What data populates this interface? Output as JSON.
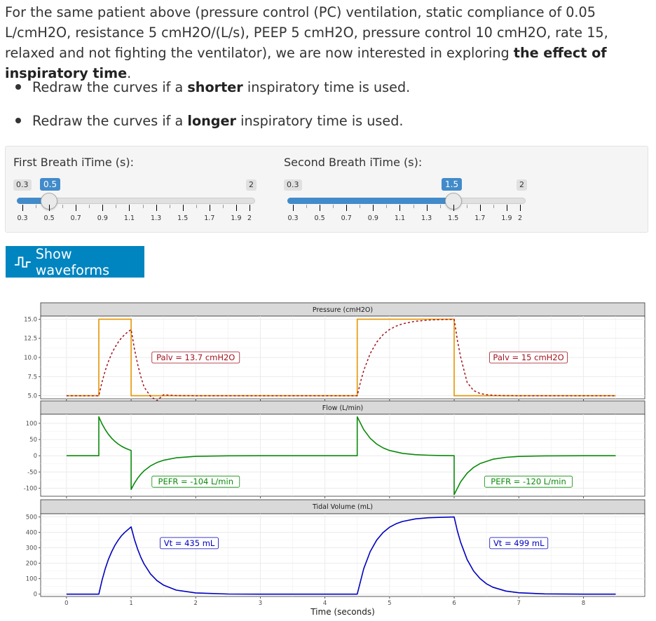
{
  "intro": {
    "part1": "For the same patient above (pressure control (PC) ventilation, static compliance of 0.05 L/cmH2O, resistance 5 cmH2O/(L/s), PEEP 5 cmH2O, pressure control 10 cmH2O, rate 15, relaxed and not fighting the ventilator), we are now interested in exploring ",
    "bold": "the effect of inspiratory time",
    "part2": "."
  },
  "bullets": [
    {
      "pre": "Redraw the curves if a ",
      "bold": "shorter",
      "post": " inspiratory time is used."
    },
    {
      "pre": "Redraw the curves if a ",
      "bold": "longer",
      "post": " inspiratory time is used."
    }
  ],
  "sliders": [
    {
      "label": "First Breath iTime (s):",
      "min": 0.3,
      "max": 2,
      "value": 0.5,
      "min_label": "0.3",
      "max_label": "2",
      "value_label": "0.5",
      "tick_labels": [
        "0.3",
        "0.5",
        "0.7",
        "0.9",
        "1.1",
        "1.3",
        "1.5",
        "1.7",
        "1.9",
        "2"
      ]
    },
    {
      "label": "Second Breath iTime (s):",
      "min": 0.3,
      "max": 2,
      "value": 1.5,
      "min_label": "0.3",
      "max_label": "2",
      "value_label": "1.5",
      "tick_labels": [
        "0.3",
        "0.5",
        "0.7",
        "0.9",
        "1.1",
        "1.3",
        "1.5",
        "1.7",
        "1.9",
        "2"
      ]
    }
  ],
  "button": {
    "label": "Show waveforms",
    "icon": "waveform-icon"
  },
  "colors": {
    "orange": "#e69500",
    "darkred": "#a0141e",
    "green": "#0a8a0a",
    "blue": "#0000c0",
    "accent": "#428bca",
    "button": "#0085c0"
  },
  "chart_data": {
    "type": "line",
    "xlabel": "Time (seconds)",
    "x_ticks": [
      0,
      1,
      2,
      3,
      4,
      5,
      6,
      7,
      8
    ],
    "xlim": [
      -0.4,
      8.95
    ],
    "panels": [
      {
        "title": "Pressure (cmH2O)",
        "y_ticks": [
          5.0,
          7.5,
          10.0,
          12.5,
          15.0
        ],
        "y_tick_labels": [
          "5.0",
          "7.5",
          "10.0",
          "12.5",
          "15.0"
        ],
        "ylim": [
          4.6,
          15.4
        ],
        "series": [
          {
            "id": "airway-pressure",
            "color": "#e69500",
            "dash": false,
            "x": [
              0,
              0.5,
              0.5,
              1.0,
              1.0,
              4.5,
              4.5,
              6.0,
              6.0,
              8.5
            ],
            "y": [
              5,
              5,
              15,
              15,
              5,
              5,
              15,
              15,
              5,
              5
            ]
          },
          {
            "id": "alveolar-pressure",
            "color": "#a0141e",
            "dash": true,
            "x": [
              0,
              0.5,
              0.55,
              0.6,
              0.65,
              0.7,
              0.75,
              0.8,
              0.85,
              0.9,
              0.95,
              1.0,
              1.05,
              1.1,
              1.15,
              1.2,
              1.3,
              1.4,
              1.5,
              1.7,
              2.0,
              2.5,
              3.0,
              4.5,
              4.55,
              4.6,
              4.7,
              4.8,
              4.9,
              5.0,
              5.1,
              5.2,
              5.4,
              5.6,
              5.8,
              6.0,
              6.05,
              6.1,
              6.2,
              6.3,
              6.4,
              6.5,
              6.6,
              6.7,
              6.8,
              7.0,
              7.3,
              7.6,
              8.0,
              8.5
            ],
            "y": [
              5,
              5,
              6.81,
              8.3,
              9.51,
              10.51,
              11.32,
              11.99,
              12.54,
              12.98,
              13.35,
              13.65,
              11.18,
              9.16,
              7.51,
              6.16,
              4.94,
              4.35,
              5.12,
              5.02,
              5.0,
              5.0,
              5.0,
              5.0,
              6.81,
              8.3,
              10.51,
              11.99,
              12.98,
              13.65,
              14.09,
              14.39,
              14.73,
              14.88,
              14.95,
              14.98,
              12.26,
              10.04,
              6.74,
              5.68,
              5.3,
              5.14,
              5.06,
              5.03,
              5.01,
              5.0,
              5.0,
              5.0,
              5.0,
              5.0
            ]
          }
        ],
        "annotations": [
          {
            "text": "Palv = 13.7 cmH2O",
            "x": 2.0,
            "y": 10.0,
            "color": "#a0141e"
          },
          {
            "text": "Palv = 15 cmH2O",
            "x": 7.15,
            "y": 10.0,
            "color": "#a0141e"
          }
        ]
      },
      {
        "title": "Flow (L/min)",
        "y_ticks": [
          -100,
          -50,
          0,
          50,
          100
        ],
        "y_tick_labels": [
          "-100",
          "-50",
          "0",
          "50",
          "100"
        ],
        "ylim": [
          -125,
          128
        ],
        "series": [
          {
            "id": "flow",
            "color": "#0a8a0a",
            "dash": false,
            "x": [
              0,
              0.5,
              0.5,
              0.55,
              0.6,
              0.65,
              0.7,
              0.75,
              0.8,
              0.85,
              0.9,
              0.95,
              1.0,
              1.0,
              1.05,
              1.1,
              1.15,
              1.2,
              1.3,
              1.4,
              1.5,
              1.7,
              2.0,
              2.5,
              3.0,
              4.5,
              4.5,
              4.6,
              4.7,
              4.8,
              4.9,
              5.0,
              5.2,
              5.4,
              5.6,
              5.8,
              6.0,
              6.0,
              6.1,
              6.2,
              6.3,
              6.4,
              6.6,
              6.8,
              7.0,
              7.4,
              8.0,
              8.5
            ],
            "y": [
              0,
              0,
              120,
              98.2,
              80.4,
              65.8,
              53.9,
              44.1,
              36.1,
              29.6,
              24.2,
              19.8,
              16.2,
              -104,
              -85.2,
              -69.7,
              -57.1,
              -46.7,
              -31.3,
              -21.0,
              -14.1,
              -6.3,
              -1.9,
              -0.3,
              0,
              0,
              120,
              80.4,
              53.9,
              36.1,
              24.2,
              16.2,
              7.3,
              3.3,
              1.5,
              0.7,
              0.3,
              -120,
              -80.4,
              -53.9,
              -36.1,
              -24.2,
              -10.9,
              -4.9,
              -2.2,
              -0.4,
              0,
              0
            ]
          }
        ],
        "annotations": [
          {
            "text": "PEFR = -104 L/min",
            "x": 2.0,
            "y": -80,
            "color": "#0a8a0a"
          },
          {
            "text": "PEFR = -120 L/min",
            "x": 7.15,
            "y": -80,
            "color": "#0a8a0a"
          }
        ]
      },
      {
        "title": "Tidal Volume (mL)",
        "y_ticks": [
          0,
          100,
          200,
          300,
          400,
          500
        ],
        "y_tick_labels": [
          "0",
          "100",
          "200",
          "300",
          "400",
          "500"
        ],
        "ylim": [
          -15,
          520
        ],
        "series": [
          {
            "id": "tidal-volume",
            "color": "#0000c0",
            "dash": false,
            "x": [
              0,
              0.5,
              0.55,
              0.6,
              0.65,
              0.7,
              0.75,
              0.8,
              0.85,
              0.9,
              0.95,
              1.0,
              1.05,
              1.1,
              1.15,
              1.2,
              1.3,
              1.4,
              1.5,
              1.7,
              2.0,
              2.5,
              3.0,
              4.5,
              4.5,
              4.6,
              4.7,
              4.8,
              4.9,
              5.0,
              5.1,
              5.2,
              5.4,
              5.6,
              5.8,
              6.0,
              6.05,
              6.1,
              6.2,
              6.3,
              6.4,
              6.5,
              6.6,
              6.8,
              7.0,
              7.4,
              8.0,
              8.5
            ],
            "y": [
              0,
              0,
              90,
              165,
              226,
              275,
              316,
              349,
              377,
              399,
              417,
              435,
              356,
              292,
              239,
              196,
              131,
              88,
              59,
              26,
              8,
              1,
              0,
              0,
              0,
              165,
              275,
              349,
              399,
              433,
              455,
              470,
              487,
              494,
              497,
              499,
              409,
              335,
              224,
              150,
              101,
              67,
              45,
              20,
              9,
              2,
              0,
              0
            ]
          }
        ],
        "annotations": [
          {
            "text": "Vt = 435 mL",
            "x": 1.9,
            "y": 330,
            "color": "#0000c0"
          },
          {
            "text": "Vt = 499 mL",
            "x": 7.0,
            "y": 330,
            "color": "#0000c0"
          }
        ]
      }
    ]
  }
}
